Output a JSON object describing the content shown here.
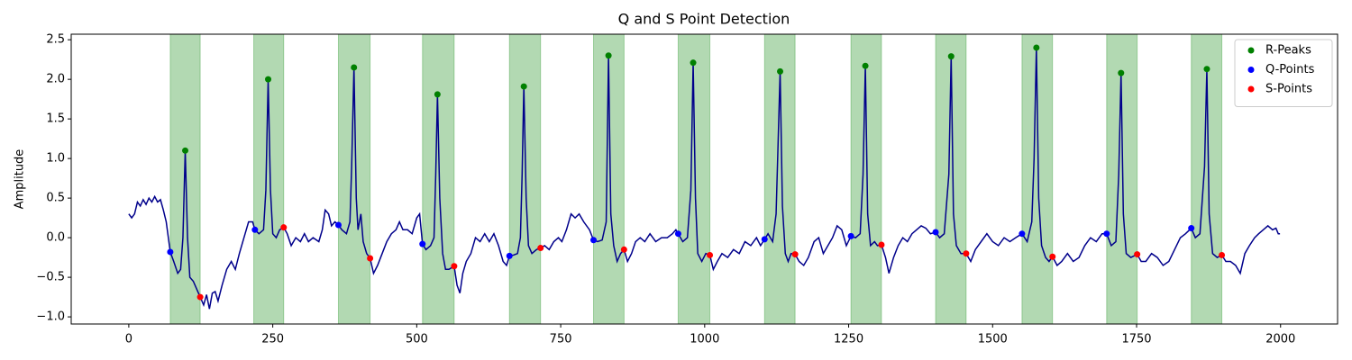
{
  "chart_data": {
    "type": "line",
    "title": "Q and S Point Detection",
    "y_label": "Amplitude",
    "xlim": [
      -100,
      2099
    ],
    "ylim": [
      -1.09,
      2.57
    ],
    "xticks": [
      0,
      250,
      500,
      750,
      1000,
      1250,
      1500,
      1750,
      2000
    ],
    "yticks": [
      {
        "value": -1,
        "label": "−1.0"
      },
      {
        "value": -0.5,
        "label": "−0.5"
      },
      {
        "value": 0,
        "label": "0.0"
      },
      0.5,
      {
        "value": 1,
        "label": "1.0"
      },
      1.5,
      {
        "value": 2,
        "label": "2.0"
      },
      2.5
    ],
    "legend": "upper right",
    "spans": {
      "color": "#008000",
      "ranges": [
        [
          72,
          124
        ],
        [
          217,
          269
        ],
        [
          364,
          419
        ],
        [
          510,
          565
        ],
        [
          661,
          715
        ],
        [
          807,
          860
        ],
        [
          954,
          1009
        ],
        [
          1104,
          1157
        ],
        [
          1254,
          1307
        ],
        [
          1401,
          1454
        ],
        [
          1551,
          1604
        ],
        [
          1698,
          1751
        ],
        [
          1845,
          1898
        ]
      ]
    },
    "series": [
      {
        "type": "line",
        "color": "#00008b",
        "x": [
          0,
          5,
          10,
          15,
          20,
          25,
          30,
          35,
          40,
          45,
          50,
          55,
          60,
          65,
          72,
          78,
          85,
          90,
          94,
          98,
          102,
          106,
          112,
          118,
          124,
          130,
          135,
          140,
          145,
          150,
          155,
          162,
          170,
          178,
          185,
          192,
          200,
          208,
          215,
          219,
          226,
          234,
          238,
          242,
          246,
          250,
          256,
          262,
          269,
          275,
          282,
          290,
          298,
          305,
          312,
          320,
          330,
          336,
          341,
          347,
          352,
          358,
          364,
          370,
          378,
          384,
          387,
          391,
          395,
          398,
          403,
          407,
          413,
          419,
          425,
          432,
          440,
          448,
          456,
          464,
          470,
          476,
          484,
          492,
          500,
          505,
          510,
          516,
          524,
          530,
          533,
          536,
          540,
          545,
          550,
          556,
          565,
          570,
          575,
          580,
          586,
          594,
          602,
          610,
          618,
          626,
          634,
          642,
          650,
          656,
          661,
          668,
          675,
          680,
          683,
          686,
          690,
          694,
          700,
          708,
          715,
          722,
          730,
          738,
          746,
          752,
          760,
          768,
          775,
          782,
          790,
          800,
          807,
          814,
          822,
          829,
          833,
          837,
          842,
          848,
          854,
          860,
          866,
          873,
          880,
          888,
          896,
          905,
          915,
          925,
          935,
          944,
          950,
          954,
          962,
          970,
          976,
          980,
          984,
          988,
          995,
          1002,
          1009,
          1015,
          1022,
          1030,
          1040,
          1050,
          1060,
          1070,
          1080,
          1090,
          1097,
          1104,
          1110,
          1118,
          1124,
          1131,
          1135,
          1140,
          1145,
          1150,
          1157,
          1164,
          1172,
          1180,
          1190,
          1198,
          1206,
          1214,
          1222,
          1230,
          1238,
          1246,
          1254,
          1262,
          1270,
          1275,
          1279,
          1283,
          1288,
          1295,
          1300,
          1307,
          1314,
          1320,
          1328,
          1336,
          1344,
          1352,
          1360,
          1368,
          1376,
          1384,
          1392,
          1401,
          1408,
          1416,
          1424,
          1428,
          1432,
          1437,
          1445,
          1454,
          1462,
          1470,
          1480,
          1490,
          1500,
          1510,
          1520,
          1530,
          1540,
          1551,
          1560,
          1568,
          1572,
          1576,
          1580,
          1585,
          1592,
          1598,
          1604,
          1612,
          1620,
          1630,
          1640,
          1650,
          1660,
          1670,
          1680,
          1690,
          1698,
          1706,
          1714,
          1719,
          1723,
          1727,
          1732,
          1740,
          1751,
          1758,
          1766,
          1776,
          1786,
          1796,
          1806,
          1816,
          1826,
          1835,
          1845,
          1852,
          1860,
          1868,
          1872,
          1876,
          1882,
          1890,
          1898,
          1905,
          1913,
          1922,
          1930,
          1938,
          1946,
          1955,
          1962,
          1970,
          1978,
          1986,
          1992,
          1996,
          1999
        ],
        "values": [
          0.3,
          0.25,
          0.3,
          0.45,
          0.4,
          0.48,
          0.42,
          0.5,
          0.45,
          0.52,
          0.45,
          0.48,
          0.35,
          0.2,
          -0.18,
          -0.3,
          -0.45,
          -0.4,
          0.0,
          1.1,
          0.0,
          -0.5,
          -0.55,
          -0.65,
          -0.75,
          -0.85,
          -0.72,
          -0.9,
          -0.7,
          -0.68,
          -0.8,
          -0.6,
          -0.4,
          -0.3,
          -0.4,
          -0.2,
          0.0,
          0.2,
          0.2,
          0.1,
          0.05,
          0.1,
          0.6,
          2.0,
          0.6,
          0.05,
          0.0,
          0.1,
          0.13,
          0.05,
          -0.1,
          0.0,
          -0.05,
          0.05,
          -0.05,
          0.0,
          -0.05,
          0.1,
          0.35,
          0.3,
          0.15,
          0.2,
          0.16,
          0.1,
          0.05,
          0.2,
          0.9,
          2.15,
          0.5,
          0.1,
          0.3,
          -0.05,
          -0.2,
          -0.26,
          -0.45,
          -0.35,
          -0.2,
          -0.05,
          0.05,
          0.1,
          0.2,
          0.1,
          0.1,
          0.05,
          0.25,
          0.3,
          -0.08,
          -0.15,
          -0.1,
          0.0,
          0.8,
          1.81,
          0.5,
          -0.2,
          -0.4,
          -0.4,
          -0.36,
          -0.6,
          -0.7,
          -0.45,
          -0.3,
          -0.2,
          0.0,
          -0.05,
          0.05,
          -0.05,
          0.05,
          -0.1,
          -0.3,
          -0.35,
          -0.23,
          -0.22,
          -0.2,
          0.0,
          0.8,
          1.91,
          0.5,
          -0.1,
          -0.2,
          -0.15,
          -0.13,
          -0.1,
          -0.15,
          -0.05,
          0.0,
          -0.05,
          0.1,
          0.3,
          0.25,
          0.3,
          0.2,
          0.1,
          -0.03,
          -0.05,
          -0.03,
          0.2,
          2.3,
          0.3,
          -0.1,
          -0.3,
          -0.2,
          -0.15,
          -0.3,
          -0.2,
          -0.05,
          0.0,
          -0.05,
          0.05,
          -0.05,
          0.0,
          0.0,
          0.05,
          0.1,
          0.05,
          -0.05,
          0.0,
          0.6,
          2.21,
          0.5,
          -0.2,
          -0.3,
          -0.2,
          -0.22,
          -0.4,
          -0.3,
          -0.2,
          -0.25,
          -0.15,
          -0.2,
          -0.05,
          -0.1,
          0.0,
          -0.1,
          -0.02,
          0.05,
          -0.05,
          0.3,
          2.1,
          0.4,
          -0.2,
          -0.3,
          -0.2,
          -0.21,
          -0.3,
          -0.35,
          -0.25,
          -0.05,
          0.0,
          -0.2,
          -0.1,
          0.0,
          0.15,
          0.1,
          -0.1,
          0.02,
          0.0,
          0.05,
          0.8,
          2.17,
          0.3,
          -0.1,
          -0.05,
          -0.1,
          -0.09,
          -0.25,
          -0.45,
          -0.25,
          -0.1,
          0.0,
          -0.05,
          0.05,
          0.1,
          0.15,
          0.12,
          0.05,
          0.07,
          0.0,
          0.05,
          0.8,
          2.29,
          0.3,
          -0.1,
          -0.2,
          -0.2,
          -0.3,
          -0.15,
          -0.05,
          0.05,
          -0.05,
          -0.1,
          0.0,
          -0.05,
          0.0,
          0.05,
          -0.05,
          0.2,
          1.0,
          2.4,
          0.5,
          -0.1,
          -0.25,
          -0.3,
          -0.24,
          -0.35,
          -0.3,
          -0.2,
          -0.3,
          -0.25,
          -0.1,
          0.0,
          -0.05,
          0.05,
          0.05,
          -0.1,
          -0.05,
          0.8,
          2.08,
          0.3,
          -0.2,
          -0.25,
          -0.21,
          -0.3,
          -0.3,
          -0.2,
          -0.25,
          -0.35,
          -0.3,
          -0.15,
          0.0,
          0.05,
          0.12,
          0.0,
          0.05,
          0.9,
          2.13,
          0.3,
          -0.2,
          -0.25,
          -0.22,
          -0.3,
          -0.3,
          -0.35,
          -0.45,
          -0.2,
          -0.1,
          0.0,
          0.05,
          0.1,
          0.15,
          0.1,
          0.12,
          0.05,
          0.05
        ]
      },
      {
        "type": "scatter",
        "name": "R-Peaks",
        "color": "#008000",
        "x": [
          98,
          242,
          391,
          536,
          686,
          833,
          980,
          1131,
          1279,
          1428,
          1576,
          1723,
          1872
        ],
        "values": [
          1.1,
          2.0,
          2.15,
          1.81,
          1.91,
          2.3,
          2.21,
          2.1,
          2.17,
          2.29,
          2.4,
          2.08,
          2.13
        ]
      },
      {
        "type": "scatter",
        "name": "Q-Points",
        "color": "#0000ff",
        "x": [
          72,
          219,
          364,
          510,
          661,
          807,
          954,
          1104,
          1254,
          1401,
          1551,
          1698,
          1845
        ],
        "values": [
          -0.18,
          0.1,
          0.16,
          -0.08,
          -0.23,
          -0.03,
          0.05,
          -0.02,
          0.02,
          0.07,
          0.05,
          0.05,
          0.12
        ]
      },
      {
        "type": "scatter",
        "name": "S-Points",
        "color": "#ff0000",
        "x": [
          124,
          269,
          419,
          565,
          715,
          860,
          1009,
          1157,
          1307,
          1454,
          1604,
          1751,
          1898
        ],
        "values": [
          -0.75,
          0.13,
          -0.26,
          -0.36,
          -0.13,
          -0.15,
          -0.22,
          -0.21,
          -0.09,
          -0.2,
          -0.24,
          -0.21,
          -0.22
        ]
      }
    ]
  }
}
